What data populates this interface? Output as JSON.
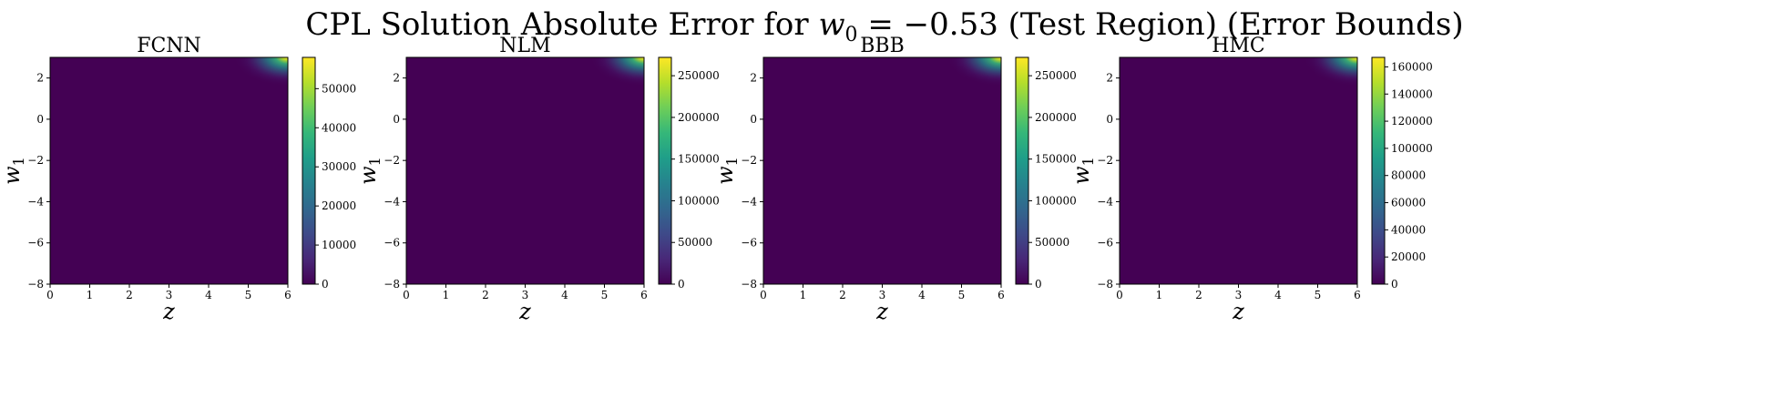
{
  "figure": {
    "title": "CPL Solution Absolute Error for w₀ = −0.53 (Test Region) (Error Bounds)",
    "title_prefix": "CPL Solution Absolute Error for ",
    "title_var": "w",
    "title_var_sub": "0",
    "title_suffix": " = −0.53 (Test Region) (Error Bounds)"
  },
  "colormap": {
    "name": "viridis",
    "stops": [
      "#440154",
      "#482878",
      "#3e4a89",
      "#31688e",
      "#26828e",
      "#1f9e89",
      "#35b779",
      "#6ece58",
      "#b5de2b",
      "#fde725"
    ]
  },
  "chart_data": [
    {
      "type": "heatmap",
      "title": "FCNN",
      "xlabel": "z",
      "ylabel": "w",
      "ylabel_sub": "1",
      "xlim": [
        0,
        6
      ],
      "ylim": [
        -8,
        3
      ],
      "x_ticks": [
        "0",
        "1",
        "2",
        "3",
        "4",
        "5",
        "6"
      ],
      "y_ticks": [
        "−8",
        "−6",
        "−4",
        "−2",
        "0",
        "2"
      ],
      "y_tick_values": [
        -8,
        -6,
        -4,
        -2,
        0,
        2
      ],
      "colorbar": {
        "min": 0,
        "max": 58000,
        "ticks": [
          0,
          10000,
          20000,
          30000,
          40000,
          50000
        ],
        "tick_labels": [
          "0",
          "10000",
          "20000",
          "30000",
          "40000",
          "50000"
        ]
      }
    },
    {
      "type": "heatmap",
      "title": "NLM",
      "xlabel": "z",
      "ylabel": "w",
      "ylabel_sub": "1",
      "xlim": [
        0,
        6
      ],
      "ylim": [
        -8,
        3
      ],
      "x_ticks": [
        "0",
        "1",
        "2",
        "3",
        "4",
        "5",
        "6"
      ],
      "y_ticks": [
        "−8",
        "−6",
        "−4",
        "−2",
        "0",
        "2"
      ],
      "y_tick_values": [
        -8,
        -6,
        -4,
        -2,
        0,
        2
      ],
      "colorbar": {
        "min": 0,
        "max": 272000,
        "ticks": [
          0,
          50000,
          100000,
          150000,
          200000,
          250000
        ],
        "tick_labels": [
          "0",
          "50000",
          "100000",
          "150000",
          "200000",
          "250000"
        ]
      }
    },
    {
      "type": "heatmap",
      "title": "BBB",
      "xlabel": "z",
      "ylabel": "w",
      "ylabel_sub": "1",
      "xlim": [
        0,
        6
      ],
      "ylim": [
        -8,
        3
      ],
      "x_ticks": [
        "0",
        "1",
        "2",
        "3",
        "4",
        "5",
        "6"
      ],
      "y_ticks": [
        "−8",
        "−6",
        "−4",
        "−2",
        "0",
        "2"
      ],
      "y_tick_values": [
        -8,
        -6,
        -4,
        -2,
        0,
        2
      ],
      "colorbar": {
        "min": 0,
        "max": 272000,
        "ticks": [
          0,
          50000,
          100000,
          150000,
          200000,
          250000
        ],
        "tick_labels": [
          "0",
          "50000",
          "100000",
          "150000",
          "200000",
          "250000"
        ]
      }
    },
    {
      "type": "heatmap",
      "title": "HMC",
      "xlabel": "z",
      "ylabel": "w",
      "ylabel_sub": "1",
      "xlim": [
        0,
        6
      ],
      "ylim": [
        -8,
        3
      ],
      "x_ticks": [
        "0",
        "1",
        "2",
        "3",
        "4",
        "5",
        "6"
      ],
      "y_ticks": [
        "−8",
        "−6",
        "−4",
        "−2",
        "0",
        "2"
      ],
      "y_tick_values": [
        -8,
        -6,
        -4,
        -2,
        0,
        2
      ],
      "colorbar": {
        "min": 0,
        "max": 167000,
        "ticks": [
          0,
          20000,
          40000,
          60000,
          80000,
          100000,
          120000,
          140000,
          160000
        ],
        "tick_labels": [
          "0",
          "20000",
          "40000",
          "60000",
          "80000",
          "100000",
          "120000",
          "140000",
          "160000"
        ]
      }
    }
  ]
}
